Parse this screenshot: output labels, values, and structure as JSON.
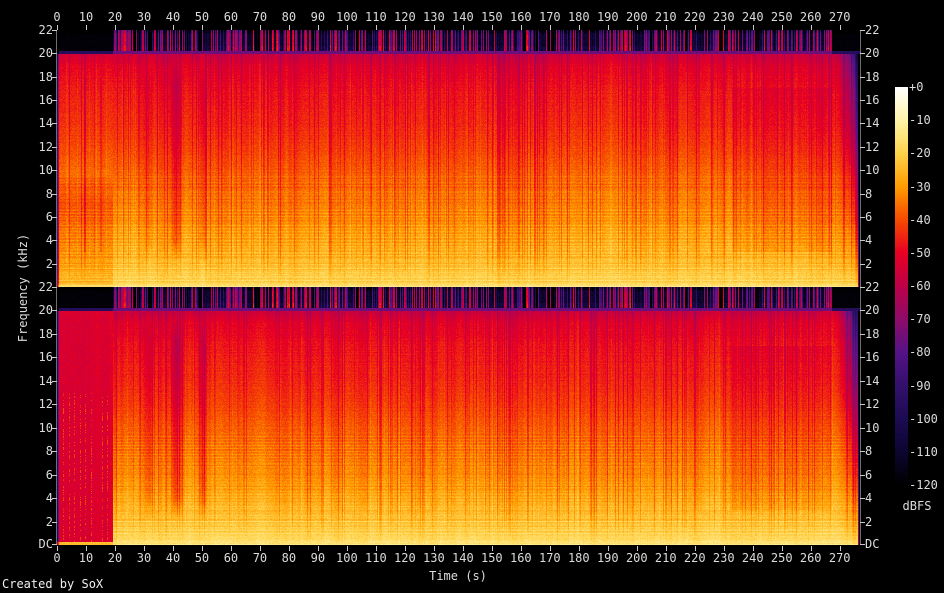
{
  "meta": {
    "credit": "Created by SoX"
  },
  "chart_data": {
    "type": "heatmap",
    "subtype": "audio-spectrogram",
    "tool": "SoX",
    "title": "",
    "xlabel": "Time (s)",
    "ylabel": "Frequency (kHz)",
    "duration_s": 277,
    "nyquist_khz": 22,
    "x_ticks": [
      0,
      10,
      20,
      30,
      40,
      50,
      60,
      70,
      80,
      90,
      100,
      110,
      120,
      130,
      140,
      150,
      160,
      170,
      180,
      190,
      200,
      210,
      220,
      230,
      240,
      250,
      260,
      270
    ],
    "y_ticks_khz": [
      22,
      20,
      18,
      16,
      14,
      12,
      10,
      8,
      6,
      4,
      2
    ],
    "dc_label": "DC",
    "channels": [
      "left",
      "right"
    ],
    "grid": false,
    "colorbar": {
      "label": "dBFS",
      "position": "right",
      "max_db": 0,
      "min_db": -120,
      "ticks": [
        "+0",
        "-10",
        "-20",
        "-30",
        "-40",
        "-50",
        "-60",
        "-70",
        "-80",
        "-90",
        "-100",
        "-110",
        "-120"
      ],
      "stops": [
        {
          "db": 0,
          "color": "#ffffff"
        },
        {
          "db": -10,
          "color": "#fff2a8"
        },
        {
          "db": -20,
          "color": "#ffd24a"
        },
        {
          "db": -30,
          "color": "#ff9b00"
        },
        {
          "db": -40,
          "color": "#f64a00"
        },
        {
          "db": -50,
          "color": "#e80022"
        },
        {
          "db": -60,
          "color": "#bc0048"
        },
        {
          "db": -70,
          "color": "#8e0b69"
        },
        {
          "db": -80,
          "color": "#551287"
        },
        {
          "db": -90,
          "color": "#33106b"
        },
        {
          "db": -100,
          "color": "#1c0b52"
        },
        {
          "db": -110,
          "color": "#0d0531"
        },
        {
          "db": -120,
          "color": "#000000"
        }
      ]
    },
    "features": {
      "content_cutoff_khz": 20,
      "freq_profile_db": [
        [
          0.05,
          -14
        ],
        [
          0.2,
          -18
        ],
        [
          0.8,
          -21
        ],
        [
          2,
          -24
        ],
        [
          4,
          -28
        ],
        [
          6,
          -32
        ],
        [
          8,
          -35
        ],
        [
          10,
          -38
        ],
        [
          12,
          -42
        ],
        [
          14,
          -45
        ],
        [
          17,
          -48
        ],
        [
          19,
          -52
        ],
        [
          19.9,
          -57
        ]
      ],
      "ultrasonic_band": {
        "low_khz": 20.15,
        "high_khz": 22,
        "start_s": 19.4,
        "end_s": 267.3,
        "stripe_db_range": [
          -115,
          -55
        ]
      },
      "cutoff_line": {
        "khz": 20.0,
        "level_db": -76
      },
      "fade_in_s": 0.9,
      "fade_out": {
        "start_s": 267,
        "end_s": 277
      },
      "intro": {
        "end_s": 19.4,
        "left_low_attenuation_db": -5.5,
        "right_flat_level_db": -53,
        "right_attack_times_s": [
          2.1,
          4.3,
          6.2,
          8.1,
          10.0,
          11.9,
          13.8,
          15.7,
          17.4
        ]
      },
      "quiet_gaps": [
        {
          "start_s": 29.5,
          "end_s": 34.0,
          "depth_db": 6
        },
        {
          "start_s": 38.0,
          "end_s": 44.5,
          "depth_db": 9
        },
        {
          "start_s": 48.5,
          "end_s": 52.5,
          "depth_db": 8
        }
      ],
      "sections": [
        {
          "start_s": 0,
          "end_s": 19.4,
          "desc": "intro: left channel with reduced lows, right channel near-flat crimson with sparse note attacks"
        },
        {
          "start_s": 19.4,
          "end_s": 233,
          "desc": "full-bandwidth loud program, lows ~-20 dBFS, highs ~-50 dBFS"
        },
        {
          "start_s": 233,
          "end_s": 267,
          "desc": "slightly quieter section (~-3 dB in mids)"
        },
        {
          "start_s": 267,
          "end_s": 277,
          "desc": "fade-out to silence"
        }
      ]
    }
  }
}
